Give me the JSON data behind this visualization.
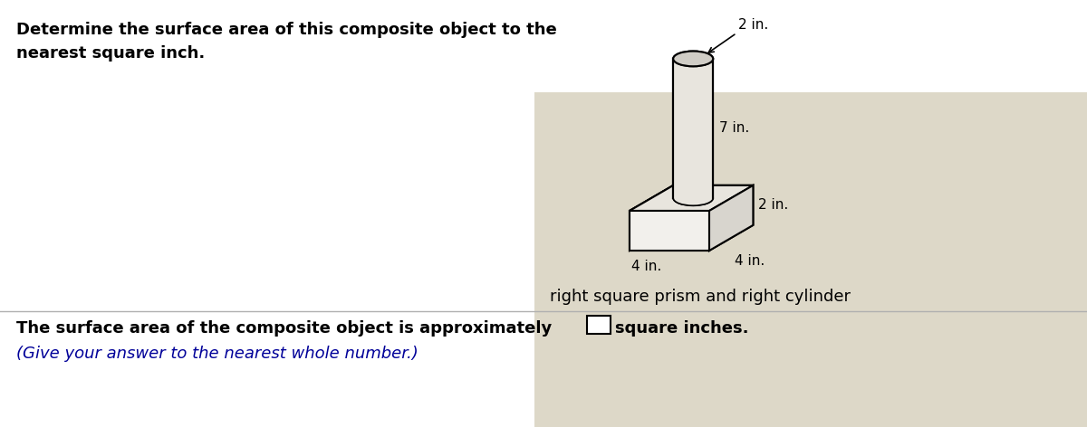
{
  "title_line1": "Determine the surface area of this composite object to the",
  "title_line2": "nearest square inch.",
  "title_fontsize": 13,
  "label_2in_top": "2 in.",
  "label_7in": "7 in.",
  "label_2in_right": "2 in.",
  "label_4in_left": "4 in.",
  "label_4in_bottom": "4 in.",
  "caption": "right square prism and right cylinder",
  "answer_line1": "The surface area of the composite object is approximately",
  "answer_line2": "(Give your answer to the nearest whole number.)",
  "answer_units": "square inches.",
  "answer2_color": "#000099",
  "bg_color": "#ffffff",
  "shape_area_bg": "#ddd8c8",
  "divider_color": "#b0b0b0",
  "prism_front": "#f2f0ec",
  "prism_right": "#d8d5ce",
  "prism_top": "#e8e5de",
  "cyl_body": "#e8e5de",
  "cyl_top": "#d0cdc6",
  "line_color": "#000000"
}
